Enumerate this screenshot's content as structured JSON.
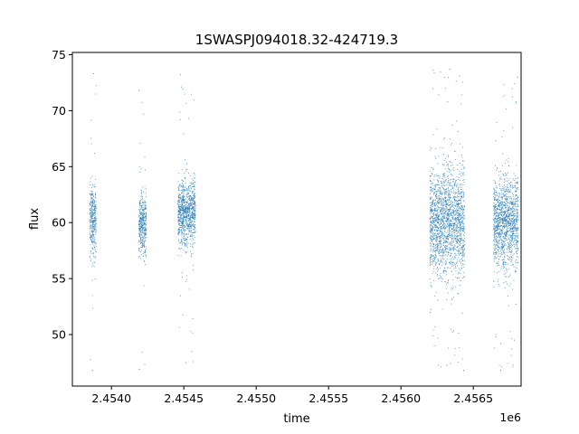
{
  "chart_data": {
    "type": "scatter",
    "title": "1SWASPJ094018.32-424719.3",
    "xlabel": "time",
    "ylabel": "flux",
    "x_offset_label": "1e6",
    "xlim": [
      2453730,
      2456830
    ],
    "ylim": [
      45.4,
      75.2
    ],
    "x_ticks": [
      2.454,
      2.4545,
      2.455,
      2.4555,
      2.456,
      2.4565
    ],
    "x_tick_labels": [
      "2.4540",
      "2.4545",
      "2.4550",
      "2.4555",
      "2.4560",
      "2.4565"
    ],
    "y_ticks": [
      50,
      55,
      60,
      65,
      70,
      75
    ],
    "y_tick_labels": [
      "50",
      "55",
      "60",
      "65",
      "70",
      "75"
    ],
    "grid": false,
    "marker_color": "#1f77b4",
    "series": [
      {
        "clusters": [
          {
            "x_range": [
              2453850,
              2453895
            ],
            "y_center": 60.2,
            "y_spread": 3.5,
            "y_min": 46.8,
            "y_max": 73.3
          },
          {
            "x_range": [
              2454190,
              2454240
            ],
            "y_center": 59.8,
            "y_spread": 3.0,
            "y_min": 46.9,
            "y_max": 71.8
          },
          {
            "x_range": [
              2454460,
              2454580
            ],
            "y_center": 60.8,
            "y_spread": 3.2,
            "y_min": 47.5,
            "y_max": 73.2
          },
          {
            "x_range": [
              2456200,
              2456440
            ],
            "y_center": 60.0,
            "y_spread": 5.5,
            "y_min": 46.8,
            "y_max": 73.7
          },
          {
            "x_range": [
              2456640,
              2456810
            ],
            "y_center": 60.0,
            "y_spread": 4.5,
            "y_min": 46.8,
            "y_max": 73.0
          }
        ]
      }
    ]
  }
}
